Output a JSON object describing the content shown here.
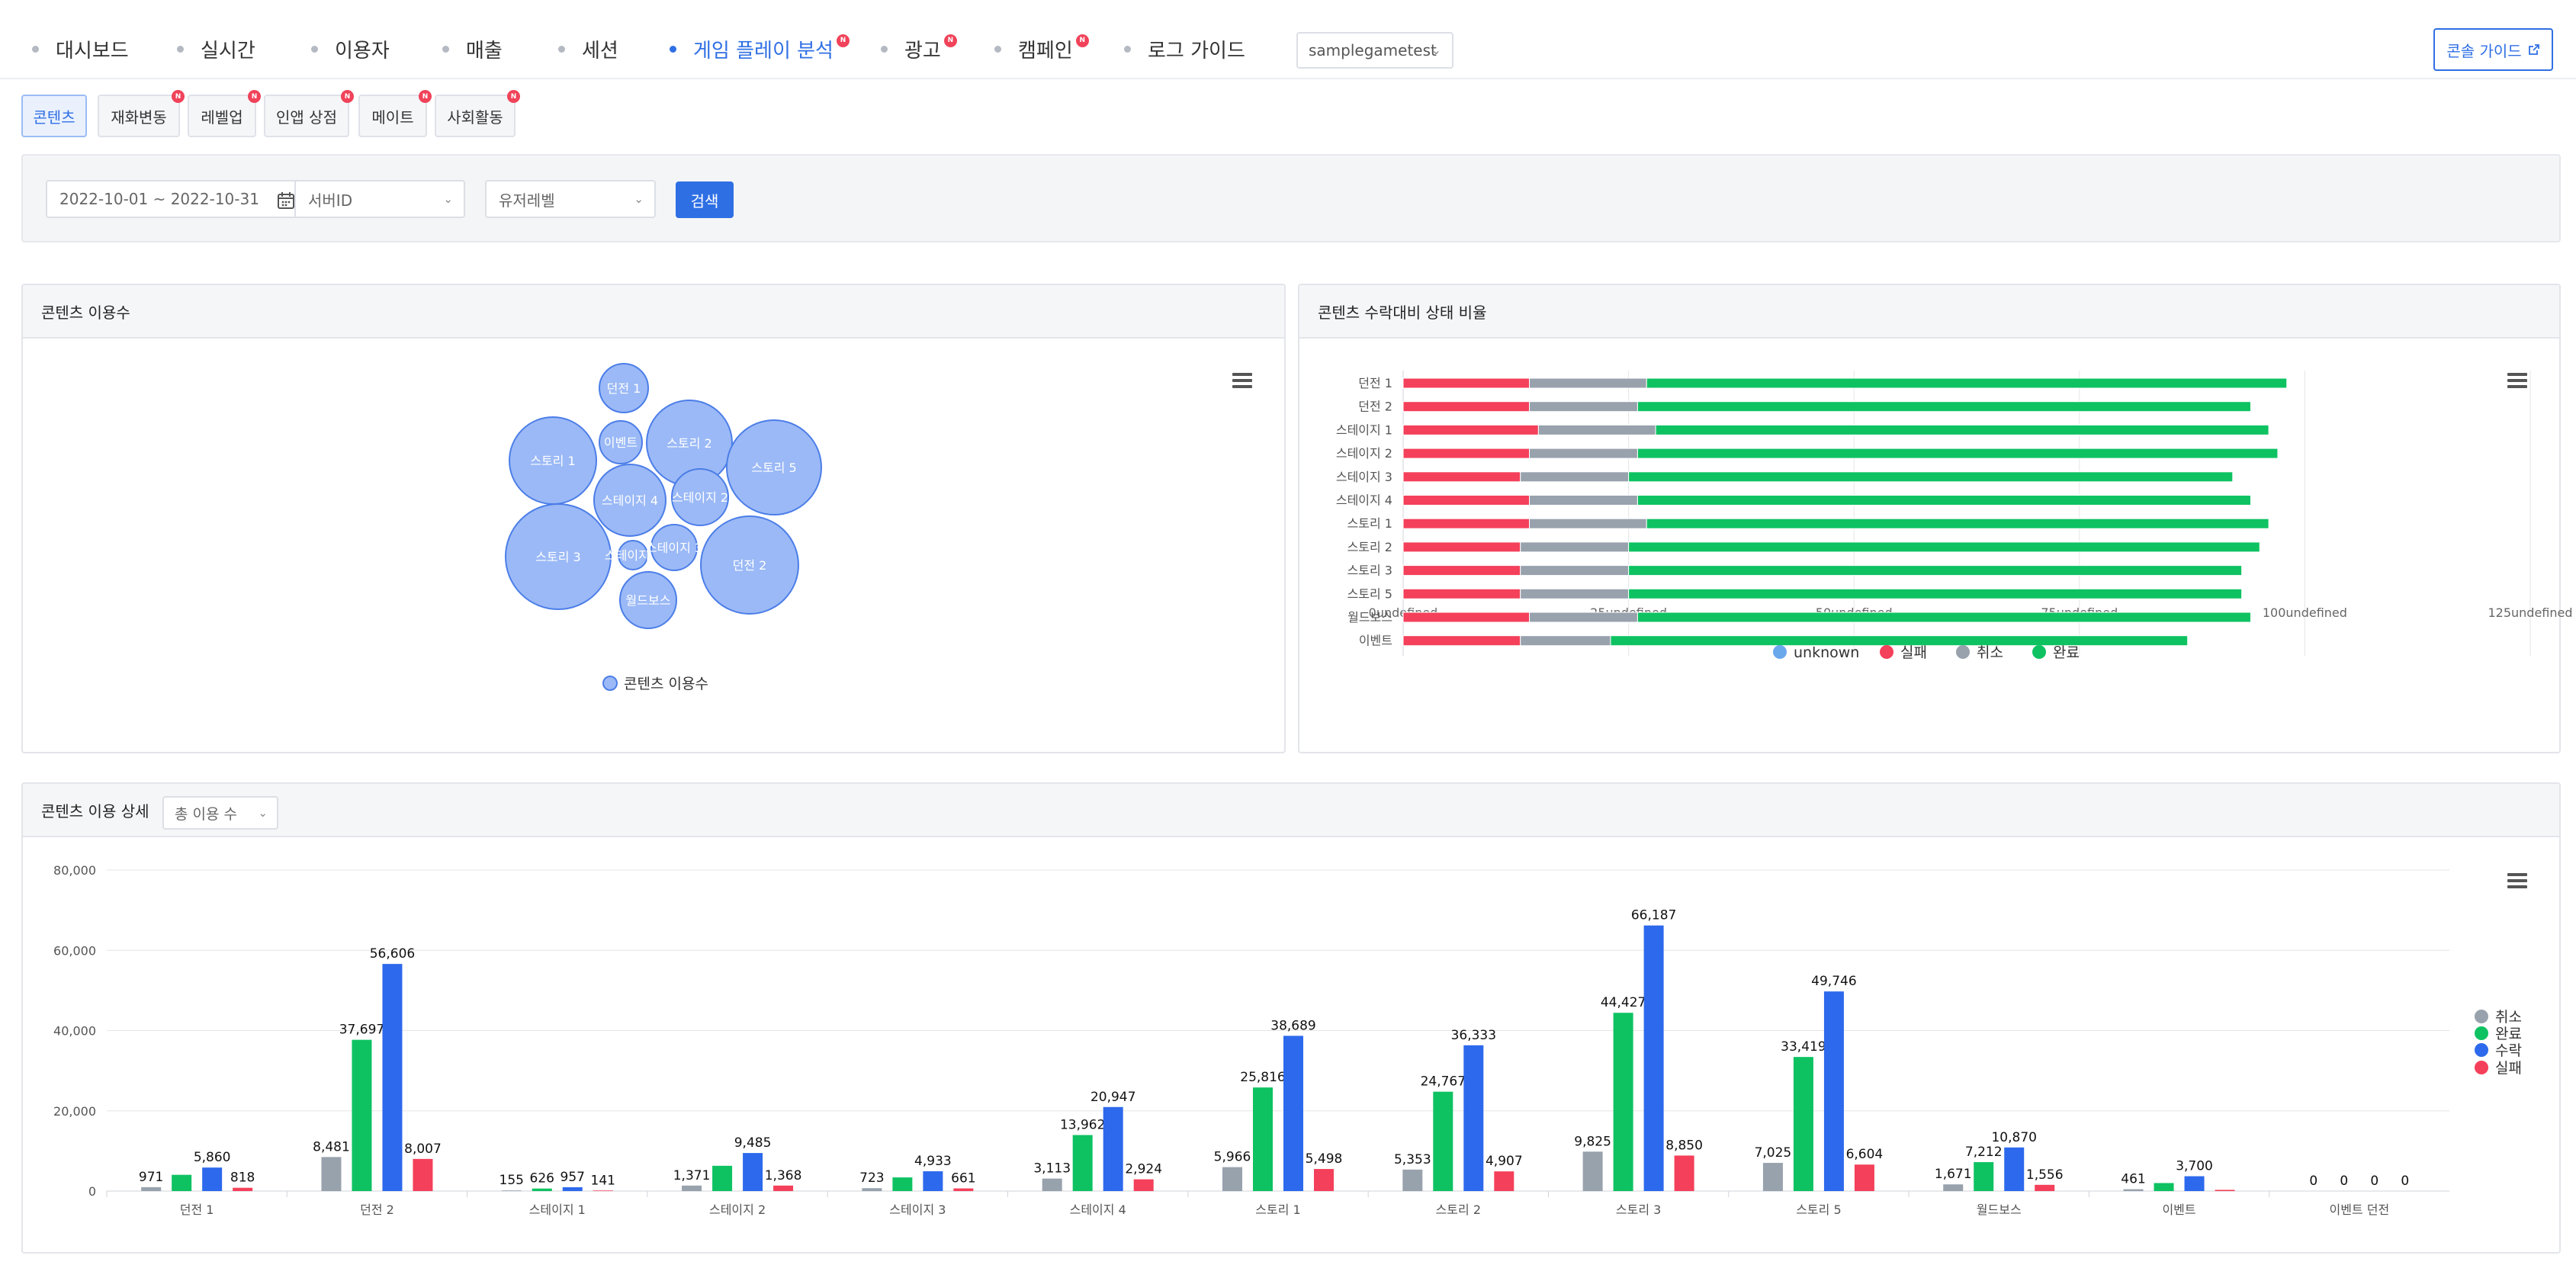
{
  "nav": {
    "items": [
      {
        "label": "대시보드",
        "active": false,
        "badge": ""
      },
      {
        "label": "실시간",
        "active": false,
        "badge": ""
      },
      {
        "label": "이용자",
        "active": false,
        "badge": ""
      },
      {
        "label": "매출",
        "active": false,
        "badge": ""
      },
      {
        "label": "세션",
        "active": false,
        "badge": ""
      },
      {
        "label": "게임 플레이 분석",
        "active": true,
        "badge": "N"
      },
      {
        "label": "광고",
        "active": false,
        "badge": "N"
      },
      {
        "label": "캠페인",
        "active": false,
        "badge": "N"
      },
      {
        "label": "로그 가이드",
        "active": false,
        "badge": ""
      }
    ],
    "game_select": "samplegametest",
    "guide_button": "콘솔 가이드"
  },
  "subtabs": [
    {
      "label": "콘텐츠",
      "active": true,
      "badge": ""
    },
    {
      "label": "재화변동",
      "active": false,
      "badge": "N"
    },
    {
      "label": "레벨업",
      "active": false,
      "badge": "N"
    },
    {
      "label": "인앱 상점",
      "active": false,
      "badge": "N"
    },
    {
      "label": "메이트",
      "active": false,
      "badge": "N"
    },
    {
      "label": "사회활동",
      "active": false,
      "badge": "N"
    }
  ],
  "filters": {
    "date_range": "2022-10-01 ~ 2022-10-31",
    "server_placeholder": "서버ID",
    "level_placeholder": "유저레벨",
    "search_label": "검색"
  },
  "panels": {
    "usage_title": "콘텐츠 이용수",
    "ratio_title": "콘텐츠 수락대비 상태 비율",
    "detail_title": "콘텐츠 이용 상세",
    "detail_select": "총 이용 수"
  },
  "colors": {
    "accent": "#2f6fe4",
    "unknown": "#6aa8ec",
    "fail": "#f4405a",
    "cancel": "#98a2ad",
    "complete": "#0ec262",
    "accept": "#2d69ec",
    "bubble_fill": "#9bb9f6",
    "bubble_stroke": "#4c7ee8"
  },
  "chart_data": [
    {
      "type": "bubble",
      "title": "콘텐츠 이용수",
      "legend": [
        "콘텐츠 이용수"
      ],
      "legend_position": "bottom",
      "labels": [
        "던전 1",
        "이벤트",
        "스토리 2",
        "스토리 5",
        "스토리 1",
        "스테이지 4",
        "스테이지 2",
        "스토리 3",
        "스테이지 1",
        "스테이지 3",
        "월드보스",
        "던전 2"
      ]
    },
    {
      "type": "bar",
      "orientation": "horizontal",
      "stacked": true,
      "title": "콘텐츠 수락대비 상태 비율",
      "categories": [
        "던전 1",
        "던전 2",
        "스테이지 1",
        "스테이지 2",
        "스테이지 3",
        "스테이지 4",
        "스토리 1",
        "스토리 2",
        "스토리 3",
        "스토리 5",
        "월드보스",
        "이벤트"
      ],
      "series": [
        {
          "name": "unknown",
          "values": [
            0,
            0,
            0,
            0,
            0,
            0,
            0,
            0,
            0,
            0,
            0,
            0
          ]
        },
        {
          "name": "실패",
          "values": [
            14,
            14,
            15,
            14,
            13,
            14,
            14,
            13,
            13,
            13,
            14,
            13
          ]
        },
        {
          "name": "취소",
          "values": [
            13,
            12,
            13,
            12,
            12,
            12,
            13,
            12,
            12,
            12,
            12,
            10
          ]
        },
        {
          "name": "완료",
          "values": [
            71,
            68,
            68,
            71,
            67,
            68,
            69,
            70,
            68,
            68,
            68,
            64
          ]
        }
      ],
      "x_ticks": [
        "0undefined",
        "25undefined",
        "50undefined",
        "75undefined",
        "100undefined",
        "125undefined"
      ],
      "xlim": [
        0,
        125
      ],
      "legend_position": "bottom",
      "grid": true
    },
    {
      "type": "bar",
      "title": "콘텐츠 이용 상세",
      "categories": [
        "던전 1",
        "던전 2",
        "스테이지 1",
        "스테이지 2",
        "스테이지 3",
        "스테이지 4",
        "스토리 1",
        "스토리 2",
        "스토리 3",
        "스토리 5",
        "월드보스",
        "이벤트",
        "이벤트 던전"
      ],
      "series": [
        {
          "name": "취소",
          "values": [
            971,
            8481,
            155,
            1371,
            723,
            3113,
            5966,
            5353,
            9825,
            7025,
            1671,
            461,
            0
          ]
        },
        {
          "name": "완료",
          "values": [
            4050,
            37697,
            626,
            6300,
            3400,
            13962,
            25816,
            24767,
            44427,
            33419,
            7212,
            2000,
            0
          ]
        },
        {
          "name": "수락",
          "values": [
            5860,
            56606,
            957,
            9485,
            4933,
            20947,
            38689,
            36333,
            66187,
            49746,
            10870,
            3700,
            0
          ]
        },
        {
          "name": "실패",
          "values": [
            818,
            8007,
            141,
            1368,
            661,
            2924,
            5498,
            4907,
            8850,
            6604,
            1556,
            300,
            0
          ]
        }
      ],
      "labels": [
        [
          "971",
          "",
          "5,860",
          "818"
        ],
        [
          "8,481",
          "37,697",
          "56,606",
          "8,007"
        ],
        [
          "155",
          "626",
          "957",
          "141"
        ],
        [
          "1,371",
          "",
          "9,485",
          "1,368"
        ],
        [
          "723",
          "",
          "4,933",
          "661"
        ],
        [
          "3,113",
          "13,962",
          "20,947",
          "2,924"
        ],
        [
          "5,966",
          "25,816",
          "38,689",
          "5,498"
        ],
        [
          "5,353",
          "24,767",
          "36,333",
          "4,907"
        ],
        [
          "9,825",
          "44,427",
          "66,187",
          "8,850"
        ],
        [
          "7,025",
          "33,419",
          "49,746",
          "6,604"
        ],
        [
          "1,671",
          "7,212",
          "10,870",
          "1,556"
        ],
        [
          "461",
          "",
          "3,700",
          ""
        ],
        [
          "0",
          "0",
          "0",
          "0"
        ]
      ],
      "y_ticks": [
        "0",
        "20,000",
        "40,000",
        "60,000",
        "80,000"
      ],
      "ylim": [
        0,
        80000
      ],
      "legend_position": "right",
      "grid": true
    }
  ]
}
